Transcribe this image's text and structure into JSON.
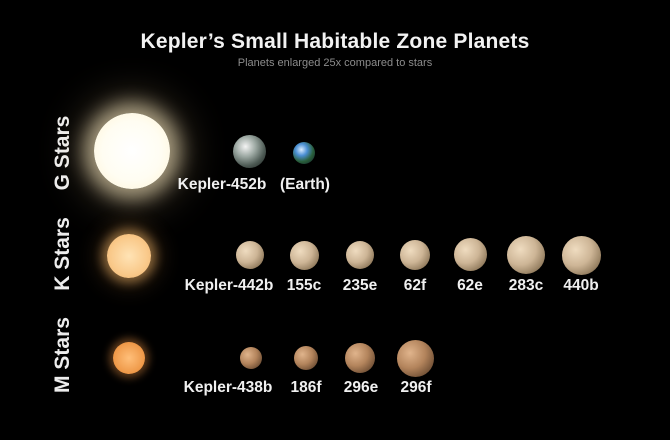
{
  "title": "Kepler’s Small Habitable Zone Planets",
  "subtitle": "Planets enlarged 25x compared to stars",
  "rows": [
    {
      "label": "G Stars",
      "planets": [
        "Kepler-452b",
        "(Earth)"
      ]
    },
    {
      "label": "K Stars",
      "planets": [
        "Kepler-442b",
        "155c",
        "235e",
        "62f",
        "62e",
        "283c",
        "440b"
      ]
    },
    {
      "label": "M Stars",
      "planets": [
        "Kepler-438b",
        "186f",
        "296e",
        "296f"
      ]
    }
  ],
  "colors": {
    "background": "#000000",
    "g_star": "#fffdf2",
    "k_star": "#f9c98a",
    "m_star": "#ef9a4a",
    "rocky_planet": "#cdb596",
    "m_planet": "#b3845c",
    "earth": "#3e7fc6"
  }
}
